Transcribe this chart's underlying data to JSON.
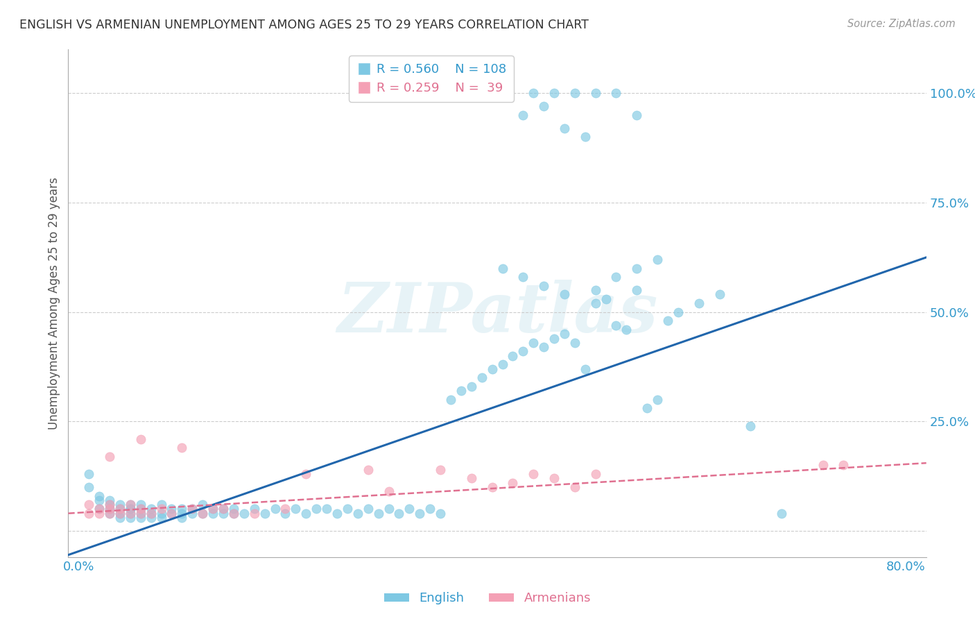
{
  "title": "ENGLISH VS ARMENIAN UNEMPLOYMENT AMONG AGES 25 TO 29 YEARS CORRELATION CHART",
  "source": "Source: ZipAtlas.com",
  "ylabel": "Unemployment Among Ages 25 to 29 years",
  "xlim": [
    -0.01,
    0.82
  ],
  "ylim": [
    -0.06,
    1.1
  ],
  "english_color": "#7ec8e3",
  "armenian_color": "#f4a0b5",
  "english_line_color": "#2166ac",
  "armenian_line_color": "#e07090",
  "legend_R_english": "0.560",
  "legend_N_english": "108",
  "legend_R_armenian": "0.259",
  "legend_N_armenian": "39",
  "watermark_text": "ZIPatlas",
  "english_x": [
    0.01,
    0.01,
    0.02,
    0.02,
    0.02,
    0.03,
    0.03,
    0.03,
    0.03,
    0.04,
    0.04,
    0.04,
    0.04,
    0.05,
    0.05,
    0.05,
    0.05,
    0.05,
    0.06,
    0.06,
    0.06,
    0.06,
    0.07,
    0.07,
    0.07,
    0.08,
    0.08,
    0.08,
    0.09,
    0.09,
    0.1,
    0.1,
    0.1,
    0.11,
    0.11,
    0.12,
    0.12,
    0.13,
    0.13,
    0.14,
    0.14,
    0.15,
    0.15,
    0.16,
    0.17,
    0.18,
    0.19,
    0.2,
    0.21,
    0.22,
    0.23,
    0.24,
    0.25,
    0.26,
    0.27,
    0.28,
    0.29,
    0.3,
    0.31,
    0.32,
    0.33,
    0.34,
    0.35,
    0.36,
    0.37,
    0.38,
    0.39,
    0.4,
    0.41,
    0.42,
    0.43,
    0.44,
    0.45,
    0.46,
    0.47,
    0.48,
    0.49,
    0.5,
    0.51,
    0.52,
    0.53,
    0.54,
    0.55,
    0.56,
    0.57,
    0.58,
    0.6,
    0.62,
    0.65,
    0.68,
    0.41,
    0.43,
    0.45,
    0.47,
    0.43,
    0.45,
    0.47,
    0.49,
    0.5,
    0.52,
    0.54,
    0.56,
    0.44,
    0.46,
    0.48,
    0.5,
    0.52,
    0.54
  ],
  "english_y": [
    0.1,
    0.13,
    0.08,
    0.05,
    0.07,
    0.04,
    0.06,
    0.05,
    0.07,
    0.04,
    0.06,
    0.05,
    0.03,
    0.04,
    0.05,
    0.06,
    0.03,
    0.05,
    0.04,
    0.05,
    0.03,
    0.06,
    0.04,
    0.05,
    0.03,
    0.04,
    0.06,
    0.03,
    0.04,
    0.05,
    0.04,
    0.05,
    0.03,
    0.04,
    0.05,
    0.04,
    0.06,
    0.04,
    0.05,
    0.04,
    0.05,
    0.04,
    0.05,
    0.04,
    0.05,
    0.04,
    0.05,
    0.04,
    0.05,
    0.04,
    0.05,
    0.05,
    0.04,
    0.05,
    0.04,
    0.05,
    0.04,
    0.05,
    0.04,
    0.05,
    0.04,
    0.05,
    0.04,
    0.3,
    0.32,
    0.33,
    0.35,
    0.37,
    0.38,
    0.4,
    0.41,
    0.43,
    0.42,
    0.44,
    0.45,
    0.43,
    0.37,
    0.52,
    0.53,
    0.47,
    0.46,
    0.55,
    0.28,
    0.3,
    0.48,
    0.5,
    0.52,
    0.54,
    0.24,
    0.04,
    0.6,
    0.58,
    0.56,
    0.54,
    0.95,
    0.97,
    0.92,
    0.9,
    0.55,
    0.58,
    0.6,
    0.62,
    1.0,
    1.0,
    1.0,
    1.0,
    1.0,
    0.95
  ],
  "armenian_x": [
    0.01,
    0.01,
    0.02,
    0.02,
    0.03,
    0.03,
    0.03,
    0.04,
    0.04,
    0.05,
    0.05,
    0.06,
    0.06,
    0.07,
    0.08,
    0.09,
    0.1,
    0.11,
    0.12,
    0.13,
    0.14,
    0.15,
    0.17,
    0.2,
    0.22,
    0.28,
    0.3,
    0.35,
    0.38,
    0.4,
    0.42,
    0.44,
    0.46,
    0.48,
    0.5,
    0.72,
    0.74,
    0.03,
    0.06
  ],
  "armenian_y": [
    0.04,
    0.06,
    0.04,
    0.05,
    0.04,
    0.05,
    0.06,
    0.04,
    0.05,
    0.04,
    0.06,
    0.04,
    0.05,
    0.04,
    0.05,
    0.04,
    0.19,
    0.05,
    0.04,
    0.05,
    0.05,
    0.04,
    0.04,
    0.05,
    0.13,
    0.14,
    0.09,
    0.14,
    0.12,
    0.1,
    0.11,
    0.13,
    0.12,
    0.1,
    0.13,
    0.15,
    0.15,
    0.17,
    0.21
  ],
  "eng_line_x": [
    -0.01,
    0.82
  ],
  "eng_line_y": [
    -0.055,
    0.625
  ],
  "arm_line_x": [
    -0.01,
    0.82
  ],
  "arm_line_y": [
    0.04,
    0.155
  ]
}
